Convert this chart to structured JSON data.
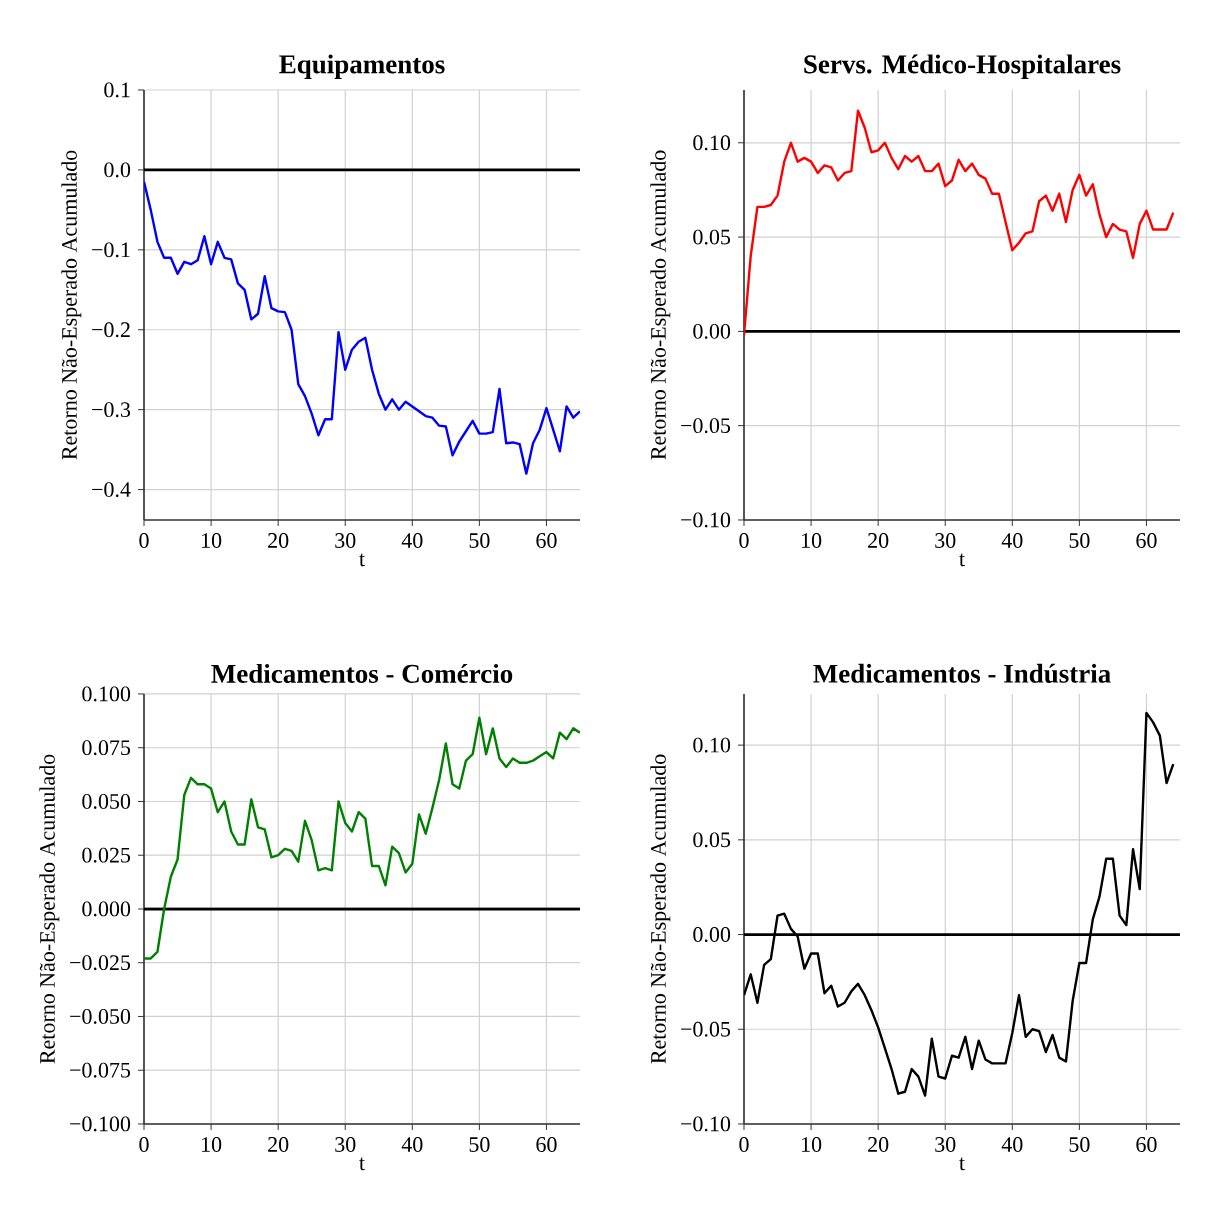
{
  "chart_data": [
    {
      "type": "line",
      "title": "Equipamentos",
      "xlabel": "t",
      "ylabel": "Retorno Não-Esperado Acumulado",
      "grid": true,
      "xlim": [
        0,
        65
      ],
      "ylim": [
        -0.438,
        0.1
      ],
      "xticks": [
        0,
        10,
        20,
        30,
        40,
        50,
        60
      ],
      "yticks": [
        {
          "value": -0.4,
          "label": "−0.4"
        },
        {
          "value": -0.3,
          "label": "−0.3"
        },
        {
          "value": -0.2,
          "label": "−0.2"
        },
        {
          "value": -0.1,
          "label": "−0.1"
        },
        {
          "value": 0,
          "label": "0.0"
        },
        {
          "value": 0.1,
          "label": "0.1"
        }
      ],
      "ref_lines": [
        {
          "axis": "y",
          "value": 0,
          "color": "#000000"
        }
      ],
      "x": [
        0,
        1,
        2,
        3,
        4,
        5,
        6,
        7,
        8,
        9,
        10,
        11,
        12,
        13,
        14,
        15,
        16,
        17,
        18,
        19,
        20,
        21,
        22,
        23,
        24,
        25,
        26,
        27,
        28,
        29,
        30,
        31,
        32,
        33,
        34,
        35,
        36,
        37,
        38,
        39,
        40,
        41,
        42,
        43,
        44,
        45,
        46,
        47,
        48,
        49,
        50,
        51,
        52,
        53,
        54,
        55,
        56,
        57,
        58,
        59,
        60,
        61,
        62,
        63,
        64,
        65
      ],
      "series": [
        {
          "color": "#0000ff",
          "values": [
            -0.015,
            -0.05,
            -0.09,
            -0.11,
            -0.11,
            -0.13,
            -0.115,
            -0.118,
            -0.113,
            -0.083,
            -0.118,
            -0.09,
            -0.11,
            -0.112,
            -0.142,
            -0.15,
            -0.187,
            -0.18,
            -0.133,
            -0.173,
            -0.177,
            -0.178,
            -0.2,
            -0.268,
            -0.283,
            -0.305,
            -0.332,
            -0.312,
            -0.312,
            -0.203,
            -0.25,
            -0.225,
            -0.215,
            -0.21,
            -0.25,
            -0.28,
            -0.3,
            -0.287,
            -0.3,
            -0.29,
            -0.296,
            -0.302,
            -0.308,
            -0.31,
            -0.32,
            -0.321,
            -0.357,
            -0.34,
            -0.327,
            -0.314,
            -0.33,
            -0.33,
            -0.328,
            -0.274,
            -0.342,
            -0.341,
            -0.343,
            -0.38,
            -0.342,
            -0.325,
            -0.298,
            -0.325,
            -0.352,
            -0.296,
            -0.31,
            -0.302
          ]
        }
      ]
    },
    {
      "type": "line",
      "title": "Servs. Médico-Hospitalares",
      "xlabel": "t",
      "ylabel": "Retorno Não-Esperado Acumulado",
      "grid": true,
      "xlim": [
        0,
        65
      ],
      "ylim": [
        -0.1,
        0.128
      ],
      "xticks": [
        0,
        10,
        20,
        30,
        40,
        50,
        60
      ],
      "yticks": [
        {
          "value": -0.1,
          "label": "−0.10"
        },
        {
          "value": -0.05,
          "label": "−0.05"
        },
        {
          "value": 0,
          "label": "0.00"
        },
        {
          "value": 0.05,
          "label": "0.05"
        },
        {
          "value": 0.1,
          "label": "0.10"
        }
      ],
      "ref_lines": [
        {
          "axis": "y",
          "value": 0,
          "color": "#000000"
        }
      ],
      "x": [
        0,
        1,
        2,
        3,
        4,
        5,
        6,
        7,
        8,
        9,
        10,
        11,
        12,
        13,
        14,
        15,
        16,
        17,
        18,
        19,
        20,
        21,
        22,
        23,
        24,
        25,
        26,
        27,
        28,
        29,
        30,
        31,
        32,
        33,
        34,
        35,
        36,
        37,
        38,
        39,
        40,
        41,
        42,
        43,
        44,
        45,
        46,
        47,
        48,
        49,
        50,
        51,
        52,
        53,
        54,
        55,
        56,
        57,
        58,
        59,
        60,
        61,
        62,
        63,
        64
      ],
      "series": [
        {
          "color": "#ff0000",
          "values": [
            -0.002,
            0.04,
            0.066,
            0.066,
            0.067,
            0.072,
            0.09,
            0.1,
            0.09,
            0.092,
            0.09,
            0.084,
            0.088,
            0.087,
            0.08,
            0.084,
            0.085,
            0.117,
            0.108,
            0.095,
            0.096,
            0.1,
            0.092,
            0.086,
            0.093,
            0.09,
            0.093,
            0.085,
            0.085,
            0.089,
            0.077,
            0.08,
            0.091,
            0.085,
            0.089,
            0.083,
            0.081,
            0.073,
            0.073,
            0.058,
            0.043,
            0.047,
            0.052,
            0.053,
            0.069,
            0.072,
            0.064,
            0.073,
            0.058,
            0.075,
            0.083,
            0.072,
            0.078,
            0.062,
            0.05,
            0.057,
            0.054,
            0.053,
            0.039,
            0.057,
            0.064,
            0.054,
            0.054,
            0.054,
            0.063
          ]
        }
      ]
    },
    {
      "type": "line",
      "title": "Medicamentos - Comércio",
      "xlabel": "t",
      "ylabel": "Retorno Não-Esperado Acumulado",
      "grid": true,
      "xlim": [
        0,
        65
      ],
      "ylim": [
        -0.1,
        0.1
      ],
      "xticks": [
        0,
        10,
        20,
        30,
        40,
        50,
        60
      ],
      "yticks": [
        {
          "value": -0.1,
          "label": "−0.100"
        },
        {
          "value": -0.075,
          "label": "−0.075"
        },
        {
          "value": -0.05,
          "label": "−0.050"
        },
        {
          "value": -0.025,
          "label": "−0.025"
        },
        {
          "value": 0,
          "label": "0.000"
        },
        {
          "value": 0.025,
          "label": "0.025"
        },
        {
          "value": 0.05,
          "label": "0.050"
        },
        {
          "value": 0.075,
          "label": "0.075"
        },
        {
          "value": 0.1,
          "label": "0.100"
        }
      ],
      "ref_lines": [
        {
          "axis": "y",
          "value": 0,
          "color": "#000000"
        }
      ],
      "x": [
        0,
        1,
        2,
        3,
        4,
        5,
        6,
        7,
        8,
        9,
        10,
        11,
        12,
        13,
        14,
        15,
        16,
        17,
        18,
        19,
        20,
        21,
        22,
        23,
        24,
        25,
        26,
        27,
        28,
        29,
        30,
        31,
        32,
        33,
        34,
        35,
        36,
        37,
        38,
        39,
        40,
        41,
        42,
        43,
        44,
        45,
        46,
        47,
        48,
        49,
        50,
        51,
        52,
        53,
        54,
        55,
        56,
        57,
        58,
        59,
        60,
        61,
        62,
        63,
        64,
        65
      ],
      "series": [
        {
          "color": "#008000",
          "values": [
            -0.023,
            -0.023,
            -0.02,
            0.0,
            0.015,
            0.023,
            0.053,
            0.061,
            0.058,
            0.058,
            0.056,
            0.045,
            0.05,
            0.036,
            0.03,
            0.03,
            0.051,
            0.038,
            0.037,
            0.024,
            0.025,
            0.028,
            0.027,
            0.022,
            0.041,
            0.032,
            0.018,
            0.019,
            0.018,
            0.05,
            0.04,
            0.036,
            0.045,
            0.042,
            0.02,
            0.02,
            0.011,
            0.029,
            0.026,
            0.017,
            0.021,
            0.044,
            0.035,
            0.047,
            0.06,
            0.077,
            0.058,
            0.056,
            0.069,
            0.072,
            0.089,
            0.072,
            0.084,
            0.07,
            0.066,
            0.07,
            0.068,
            0.068,
            0.069,
            0.071,
            0.073,
            0.07,
            0.082,
            0.079,
            0.084,
            0.082
          ]
        }
      ]
    },
    {
      "type": "line",
      "title": "Medicamentos - Indústria",
      "xlabel": "t",
      "ylabel": "Retorno Não-Esperado Acumulado",
      "grid": true,
      "xlim": [
        0,
        65
      ],
      "ylim": [
        -0.1,
        0.127
      ],
      "xticks": [
        0,
        10,
        20,
        30,
        40,
        50,
        60
      ],
      "yticks": [
        {
          "value": -0.1,
          "label": "−0.10"
        },
        {
          "value": -0.05,
          "label": "−0.05"
        },
        {
          "value": 0,
          "label": "0.00"
        },
        {
          "value": 0.05,
          "label": "0.05"
        },
        {
          "value": 0.1,
          "label": "0.10"
        }
      ],
      "ref_lines": [
        {
          "axis": "y",
          "value": 0,
          "color": "#000000"
        }
      ],
      "x": [
        0,
        1,
        2,
        3,
        4,
        5,
        6,
        7,
        8,
        9,
        10,
        11,
        12,
        13,
        14,
        15,
        16,
        17,
        18,
        19,
        20,
        21,
        22,
        23,
        24,
        25,
        26,
        27,
        28,
        29,
        30,
        31,
        32,
        33,
        34,
        35,
        36,
        37,
        38,
        39,
        40,
        41,
        42,
        43,
        44,
        45,
        46,
        47,
        48,
        49,
        50,
        51,
        52,
        53,
        54,
        55,
        56,
        57,
        58,
        59,
        60,
        61,
        62,
        63,
        64
      ],
      "series": [
        {
          "color": "#000000",
          "values": [
            -0.032,
            -0.021,
            -0.036,
            -0.016,
            -0.013,
            0.01,
            0.011,
            0.003,
            -0.001,
            -0.018,
            -0.01,
            -0.01,
            -0.031,
            -0.027,
            -0.038,
            -0.036,
            -0.03,
            -0.026,
            -0.032,
            -0.04,
            -0.049,
            -0.06,
            -0.071,
            -0.084,
            -0.083,
            -0.071,
            -0.075,
            -0.085,
            -0.055,
            -0.075,
            -0.076,
            -0.064,
            -0.065,
            -0.054,
            -0.071,
            -0.056,
            -0.066,
            -0.068,
            -0.068,
            -0.068,
            -0.052,
            -0.032,
            -0.054,
            -0.05,
            -0.051,
            -0.062,
            -0.053,
            -0.065,
            -0.067,
            -0.035,
            -0.015,
            -0.015,
            0.008,
            0.02,
            0.04,
            0.04,
            0.01,
            0.005,
            0.045,
            0.024,
            0.117,
            0.112,
            0.105,
            0.08,
            0.09
          ]
        }
      ]
    }
  ]
}
